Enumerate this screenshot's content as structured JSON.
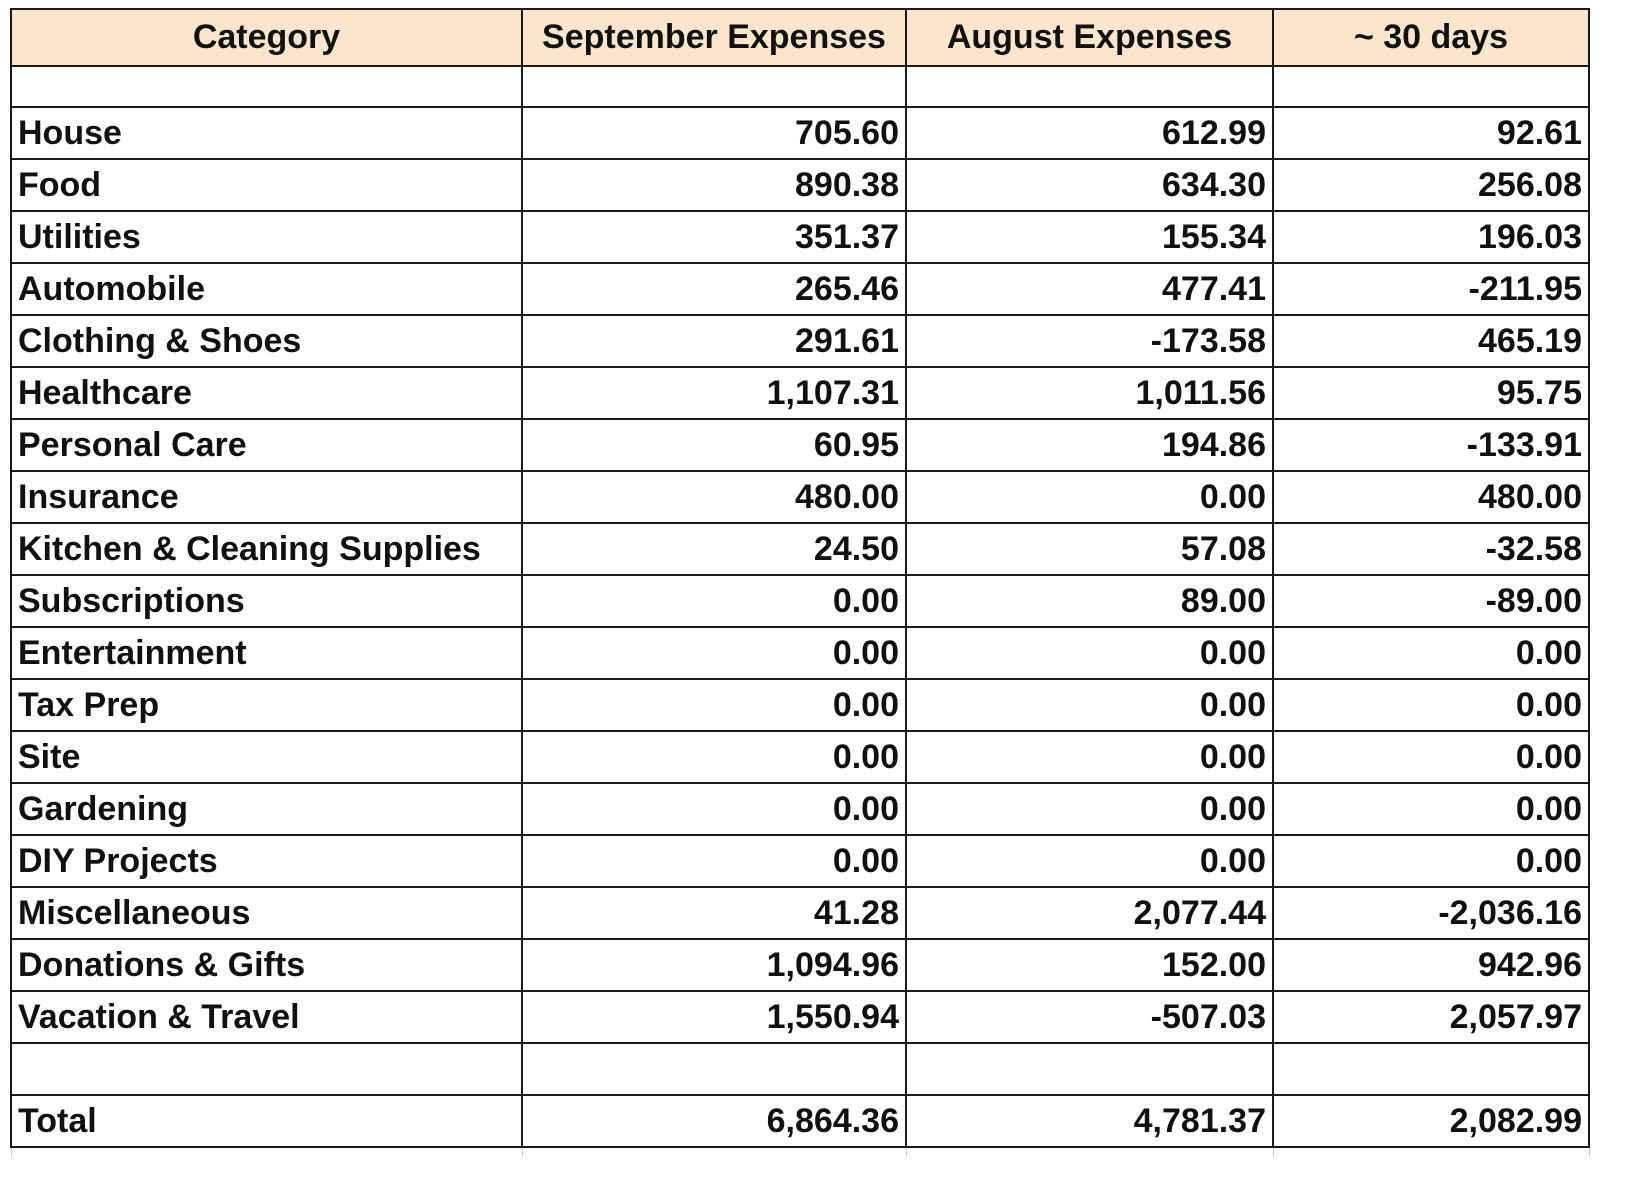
{
  "headers": [
    "Category",
    "September Expenses",
    "August Expenses",
    "~ 30 days"
  ],
  "rows": [
    {
      "category": "House",
      "september": "705.60",
      "august": "612.99",
      "diff": "92.61"
    },
    {
      "category": "Food",
      "september": "890.38",
      "august": "634.30",
      "diff": "256.08"
    },
    {
      "category": "Utilities",
      "september": "351.37",
      "august": "155.34",
      "diff": "196.03"
    },
    {
      "category": "Automobile",
      "september": "265.46",
      "august": "477.41",
      "diff": "-211.95"
    },
    {
      "category": "Clothing & Shoes",
      "september": "291.61",
      "august": "-173.58",
      "diff": "465.19"
    },
    {
      "category": "Healthcare",
      "september": "1,107.31",
      "august": "1,011.56",
      "diff": "95.75"
    },
    {
      "category": "Personal Care",
      "september": "60.95",
      "august": "194.86",
      "diff": "-133.91"
    },
    {
      "category": "Insurance",
      "september": "480.00",
      "august": "0.00",
      "diff": "480.00"
    },
    {
      "category": "Kitchen & Cleaning Supplies",
      "september": "24.50",
      "august": "57.08",
      "diff": "-32.58"
    },
    {
      "category": "Subscriptions",
      "september": "0.00",
      "august": "89.00",
      "diff": "-89.00"
    },
    {
      "category": "Entertainment",
      "september": "0.00",
      "august": "0.00",
      "diff": "0.00"
    },
    {
      "category": "Tax Prep",
      "september": "0.00",
      "august": "0.00",
      "diff": "0.00"
    },
    {
      "category": "Site",
      "september": "0.00",
      "august": "0.00",
      "diff": "0.00"
    },
    {
      "category": "Gardening",
      "september": "0.00",
      "august": "0.00",
      "diff": "0.00"
    },
    {
      "category": "DIY Projects",
      "september": "0.00",
      "august": "0.00",
      "diff": "0.00"
    },
    {
      "category": "Miscellaneous",
      "september": "41.28",
      "august": "2,077.44",
      "diff": "-2,036.16"
    },
    {
      "category": "Donations & Gifts",
      "september": "1,094.96",
      "august": "152.00",
      "diff": "942.96"
    },
    {
      "category": "Vacation & Travel",
      "september": "1,550.94",
      "august": "-507.03",
      "diff": "2,057.97"
    }
  ],
  "total": {
    "category": "Total",
    "september": "6,864.36",
    "august": "4,781.37",
    "diff": "2,082.99"
  },
  "colors": {
    "header_bg": "#fce5cd",
    "grid": "#1a1a1a"
  }
}
